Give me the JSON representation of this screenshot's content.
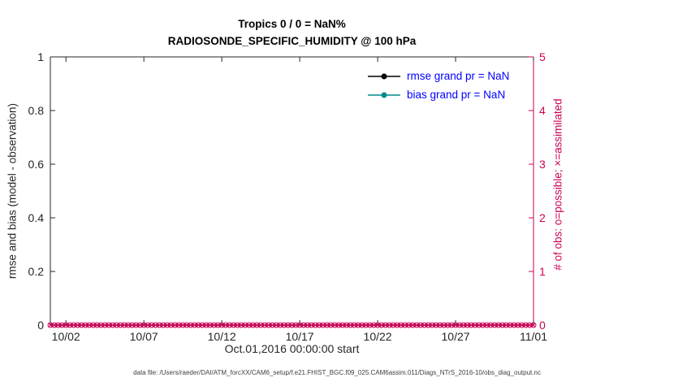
{
  "figure": {
    "caption": "data file: /Users/raeder/DAI/ATM_forcXX/CAM6_setup/f.e21.FHIST_BGC.f09_025.CAM6assim.011/Diags_NTrS_2016-10/obs_diag_output.nc"
  },
  "colors": {
    "axis": "#262626",
    "right_axis": "#cc0055",
    "legend_text": "#0000ff",
    "rmse": "#000000",
    "bias": "#008b8b",
    "background": "#ffffff"
  },
  "legend": {
    "items": [
      {
        "label": "rmse grand pr = NaN",
        "marker_color": "#000000",
        "text_color": "#0000ff"
      },
      {
        "label": "bias grand pr = NaN",
        "marker_color": "#008b8b",
        "text_color": "#0000ff"
      }
    ]
  },
  "chart_data": {
    "type": "line",
    "title": "Tropics 0 / 0 = NaN%",
    "subtitle": "RADIOSONDE_SPECIFIC_HUMIDITY @ 100 hPa",
    "xlabel": "Oct.01,2016 00:00:00 start",
    "ylabel_left": "rmse and bias (model - observation)",
    "ylabel_right": "# of obs: o=possible; ×=assimilated",
    "x_range": [
      "10/01/2016",
      "11/01/2016"
    ],
    "x_axis_span_days": 31,
    "x_tick_days": [
      1,
      6,
      11,
      16,
      21,
      26,
      31
    ],
    "x_ticklabels": [
      "10/02",
      "10/07",
      "10/12",
      "10/17",
      "10/22",
      "10/27",
      "11/01"
    ],
    "y_left": {
      "min": 0,
      "max": 1,
      "tick_values": [
        0,
        0.2,
        0.4,
        0.6,
        0.8,
        1
      ],
      "ticks": [
        "0",
        "0.2",
        "0.4",
        "0.6",
        "0.8",
        "1"
      ]
    },
    "y_right": {
      "min": 0,
      "max": 5,
      "tick_values": [
        0,
        1,
        2,
        3,
        4,
        5
      ],
      "ticks": [
        "0",
        "1",
        "2",
        "3",
        "4",
        "5"
      ]
    },
    "grid": false,
    "legend_position": "top-right-inside",
    "obs_points": 125,
    "series": [
      {
        "name": "rmse grand pr = NaN",
        "type": "line",
        "color": "#000000",
        "values": "NaN - no curve plotted"
      },
      {
        "name": "bias grand pr = NaN",
        "type": "line",
        "color": "#008b8b",
        "values": "NaN - no curve plotted"
      },
      {
        "name": "# of obs possible (o)",
        "type": "scatter",
        "marker": "o",
        "color": "#cc0055",
        "constant_value": 0,
        "points": 125
      },
      {
        "name": "# of obs assimilated (x)",
        "type": "scatter",
        "marker": "×",
        "color": "#cc0055",
        "constant_value": 0,
        "points": 125
      }
    ]
  }
}
